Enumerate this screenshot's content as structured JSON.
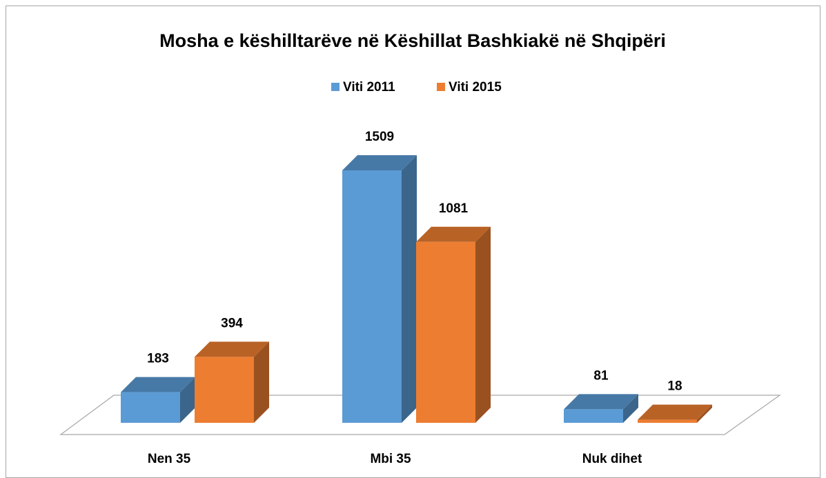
{
  "chart_data": {
    "type": "bar3d",
    "title": "Mosha e këshilltarëve në Këshillat Bashkiakë në Shqipëri",
    "categories": [
      "Nen 35",
      "Mbi 35",
      "Nuk dihet"
    ],
    "series": [
      {
        "name": "Viti 2011",
        "color": "#5b9bd5",
        "values": [
          183,
          1509,
          81
        ]
      },
      {
        "name": "Viti 2015",
        "color": "#ed7d31",
        "values": [
          394,
          1081,
          18
        ]
      }
    ],
    "legend": "top"
  }
}
